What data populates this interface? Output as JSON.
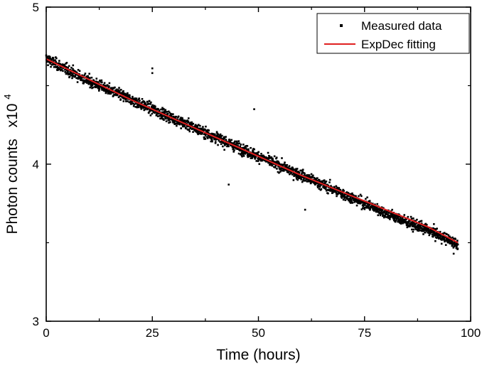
{
  "chart_data": {
    "type": "scatter",
    "xlabel": "Time (hours)",
    "ylabel": "Photon counts",
    "ylabel_multiplier": "x10",
    "ylabel_exponent": "4",
    "xlim": [
      0,
      100
    ],
    "ylim": [
      3,
      5
    ],
    "x_ticks": [
      0,
      25,
      50,
      75,
      100
    ],
    "x_tick_labels": [
      "0",
      "25",
      "50",
      "75",
      "100"
    ],
    "y_ticks": [
      3,
      4,
      5
    ],
    "y_tick_labels": [
      "3",
      "4",
      "5"
    ],
    "grid": false,
    "legend_position": "top-right",
    "series": [
      {
        "name": "Measured data",
        "kind": "scatter",
        "color": "#000000",
        "x_range": [
          0,
          97
        ],
        "y_trend": [
          [
            0,
            4.67
          ],
          [
            5,
            4.6
          ],
          [
            10,
            4.53
          ],
          [
            15,
            4.47
          ],
          [
            20,
            4.41
          ],
          [
            25,
            4.35
          ],
          [
            30,
            4.29
          ],
          [
            35,
            4.23
          ],
          [
            40,
            4.17
          ],
          [
            45,
            4.11
          ],
          [
            50,
            4.05
          ],
          [
            55,
            3.99
          ],
          [
            60,
            3.93
          ],
          [
            65,
            3.87
          ],
          [
            70,
            3.81
          ],
          [
            75,
            3.75
          ],
          [
            80,
            3.69
          ],
          [
            85,
            3.63
          ],
          [
            90,
            3.58
          ],
          [
            97,
            3.49
          ]
        ],
        "noise": 0.035,
        "outliers": [
          [
            25,
            4.61
          ],
          [
            25,
            4.58
          ],
          [
            49,
            4.35
          ],
          [
            43,
            3.87
          ],
          [
            61,
            3.71
          ],
          [
            96,
            3.43
          ]
        ]
      },
      {
        "name": "ExpDec fitting",
        "kind": "line",
        "color": "#e02020",
        "x": [
          0,
          10,
          20,
          30,
          40,
          50,
          60,
          70,
          80,
          90,
          97
        ],
        "y": [
          4.67,
          4.54,
          4.41,
          4.29,
          4.17,
          4.05,
          3.93,
          3.82,
          3.71,
          3.6,
          3.5
        ]
      }
    ]
  }
}
